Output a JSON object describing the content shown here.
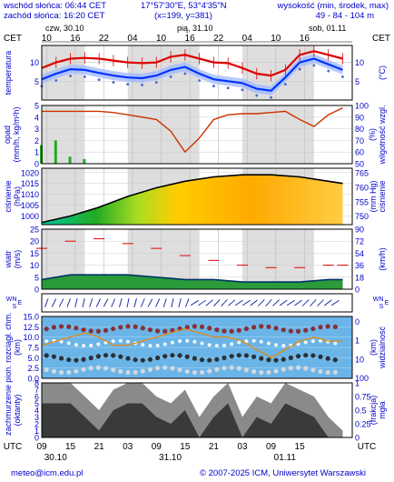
{
  "header": {
    "sunrise": "wschód słońca: 06:44 CET",
    "sunset": "zachód słońca: 16:20 CET",
    "coords": "17°57'30\"E, 53°4'35\"N",
    "grid": "(x=199, y=381)",
    "elev_label": "wysokość (min, środek, max)",
    "elev_values": "49 - 84 - 104 m"
  },
  "timeline": {
    "top_tz": "CET",
    "bottom_tz": "UTC",
    "top_ticks": [
      "10",
      "16",
      "22",
      "04",
      "10",
      "16",
      "22",
      "04",
      "10",
      "16"
    ],
    "day_labels": [
      "czw, 30.10",
      "pią, 31.10",
      "sob, 01.11"
    ],
    "bottom_ticks": [
      "09",
      "15",
      "21",
      "03",
      "09",
      "15",
      "21",
      "03",
      "09",
      "15"
    ],
    "bottom_dates": [
      "30.10",
      "31.10",
      "01.11"
    ]
  },
  "footer": {
    "email": "meteo@icm.edu.pl",
    "copyright": "© 2007-2025 ICM, Uniwersytet Warszawski"
  },
  "chart_data": [
    {
      "type": "line",
      "ylabel": "temperatura (°C)",
      "yticks": [
        5,
        10
      ],
      "ylim": [
        0,
        14.5
      ],
      "x_hours": [
        0,
        3,
        6,
        9,
        12,
        15,
        18,
        21,
        24,
        27,
        30,
        33,
        36,
        39,
        42,
        45,
        48,
        51,
        54,
        57,
        60,
        63
      ],
      "series": [
        {
          "name": "max",
          "color": "#dd0000",
          "values": [
            8.5,
            10,
            11,
            11.2,
            11,
            10.5,
            10,
            9.8,
            10,
            11.5,
            12,
            11,
            10,
            9.8,
            8.5,
            7,
            6.5,
            8,
            12,
            13,
            12,
            11
          ]
        },
        {
          "name": "temp",
          "color": "#0033ff",
          "values": [
            5.5,
            7,
            8.2,
            8,
            7.2,
            6.5,
            6,
            5.8,
            6.5,
            8,
            8.8,
            7,
            5.5,
            5,
            4.5,
            3,
            2.5,
            6,
            10,
            11,
            9.5,
            8
          ]
        }
      ]
    },
    {
      "type": "bar",
      "ylabel": "opad (mm/h, kg/m²/h)",
      "y2label": "wilgotność wzgl. (%)",
      "yticks": [
        0,
        1,
        2,
        3,
        4,
        5
      ],
      "y2ticks": [
        50,
        60,
        70,
        80,
        90,
        100
      ],
      "ylim": [
        0,
        5
      ],
      "y2lim": [
        50,
        100
      ],
      "x_hours": [
        0,
        3,
        6,
        9,
        12,
        15,
        18,
        21,
        24,
        27,
        30,
        33,
        36,
        39,
        42,
        45,
        48,
        51,
        54,
        57,
        60,
        63
      ],
      "precip": [
        1.6,
        2.0,
        0.6,
        0.4,
        0,
        0,
        0,
        0,
        0,
        0,
        0,
        0,
        0,
        0,
        0,
        0,
        0,
        0,
        0,
        0,
        0,
        0
      ],
      "humidity": [
        95,
        95,
        95,
        95,
        95,
        94,
        92,
        90,
        88,
        78,
        60,
        72,
        88,
        92,
        93,
        93,
        94,
        95,
        88,
        82,
        92,
        98
      ]
    },
    {
      "type": "area",
      "ylabel": "ciśnienie (hPa)",
      "y2label": "ciśnienie (mm Hg)",
      "yticks": [
        1000,
        1005,
        1010,
        1015,
        1020
      ],
      "y2ticks": [
        750,
        755,
        760,
        765
      ],
      "ylim": [
        996,
        1022
      ],
      "x_hours": [
        0,
        6,
        12,
        18,
        24,
        30,
        36,
        42,
        48,
        54,
        60,
        63
      ],
      "values": [
        997,
        1000,
        1004,
        1009,
        1013,
        1016,
        1018,
        1019,
        1019,
        1018,
        1016,
        1015
      ]
    },
    {
      "type": "area",
      "ylabel": "wiatr (m/s)",
      "y2label": "(km/h)",
      "yticks": [
        0,
        5,
        10,
        15,
        20,
        25
      ],
      "y2ticks": [
        0,
        18,
        36,
        54,
        72,
        90
      ],
      "ylim": [
        0,
        25
      ],
      "x_hours": [
        0,
        6,
        12,
        18,
        24,
        30,
        36,
        42,
        48,
        54,
        60,
        63
      ],
      "series": [
        {
          "name": "gust",
          "color": "#dd0000",
          "values": [
            17,
            20,
            21,
            19,
            17,
            14,
            12,
            10,
            9,
            9,
            10,
            10
          ]
        },
        {
          "name": "wind",
          "color": "#006600",
          "values": [
            4,
            6,
            6,
            6,
            5,
            4,
            4,
            3,
            3,
            3,
            4,
            4
          ]
        }
      ]
    },
    {
      "type": "scatter",
      "ylabel": "wiatr kierunek",
      "y_labels": [
        "N",
        "W",
        "S",
        "E"
      ],
      "count": 40
    },
    {
      "type": "line",
      "ylabel": "pion. rozciągł. chm. (km)",
      "y2label": "widzialność (km)",
      "yticks": [
        0,
        2.5,
        5,
        7.5,
        10,
        12.5,
        15
      ],
      "y2ticks": [
        0,
        1,
        10,
        100
      ],
      "ylim": [
        0,
        15
      ],
      "visibility": [
        8,
        9,
        10,
        11,
        10,
        8,
        8,
        9,
        10,
        11,
        12,
        11,
        10,
        10,
        9,
        7,
        5,
        7,
        9,
        10,
        9,
        9
      ]
    },
    {
      "type": "area",
      "ylabel": "zachmurzenie (oktanty)",
      "y2label": "mgła (frakcja)",
      "yticks": [
        0,
        1,
        2,
        3,
        4,
        5,
        6,
        7,
        8
      ],
      "y2ticks": [
        0,
        0.25,
        0.5,
        0.75,
        1
      ],
      "ylim": [
        0,
        8
      ],
      "x_hours": [
        0,
        3,
        6,
        9,
        12,
        15,
        18,
        21,
        24,
        27,
        30,
        33,
        36,
        39,
        42,
        45,
        48,
        51,
        54,
        57,
        60,
        63
      ],
      "cloud": [
        8,
        8,
        8,
        6,
        4,
        7,
        8,
        8,
        6,
        5,
        7,
        3,
        6,
        8,
        3,
        6,
        5,
        8,
        7,
        6,
        3,
        1
      ]
    }
  ]
}
